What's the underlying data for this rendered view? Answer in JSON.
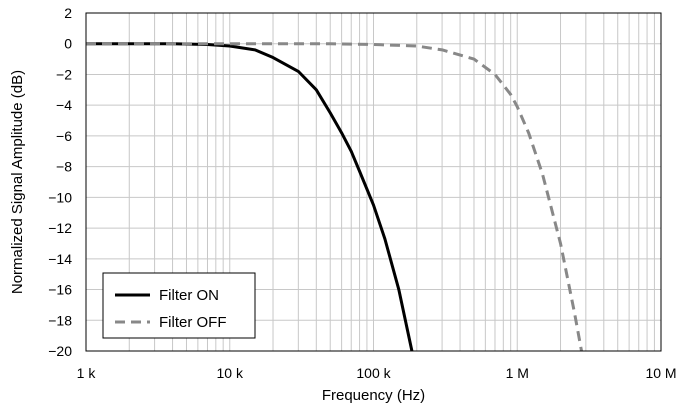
{
  "chart_data": {
    "type": "line",
    "xscale": "log",
    "xlabel": "Frequency (Hz)",
    "ylabel": "Normalized Signal Amplitude (dB)",
    "xlim": [
      1000,
      10000000
    ],
    "ylim": [
      -20,
      2
    ],
    "x_ticks": [
      1000,
      10000,
      100000,
      1000000,
      10000000
    ],
    "x_tick_labels": [
      "1 k",
      "10 k",
      "100 k",
      "1 M",
      "10 M"
    ],
    "y_ticks": [
      2,
      0,
      -2,
      -4,
      -6,
      -8,
      -10,
      -12,
      -14,
      -16,
      -18,
      -20
    ],
    "y_tick_labels": [
      "2",
      "0",
      "−2",
      "−4",
      "−6",
      "−8",
      "−10",
      "−12",
      "−14",
      "−16",
      "−18",
      "−20"
    ],
    "grid": true,
    "legend_position": "bottom-left",
    "series": [
      {
        "name": "Filter ON",
        "color": "#000000",
        "style": "solid",
        "points": [
          [
            1000,
            0.0
          ],
          [
            2000,
            0.0
          ],
          [
            4000,
            0.0
          ],
          [
            7000,
            -0.05
          ],
          [
            10000,
            -0.15
          ],
          [
            15000,
            -0.4
          ],
          [
            20000,
            -0.9
          ],
          [
            30000,
            -1.8
          ],
          [
            40000,
            -3.0
          ],
          [
            50000,
            -4.5
          ],
          [
            60000,
            -5.8
          ],
          [
            70000,
            -7.0
          ],
          [
            80000,
            -8.3
          ],
          [
            100000,
            -10.5
          ],
          [
            120000,
            -12.7
          ],
          [
            150000,
            -16.0
          ],
          [
            185000,
            -20.0
          ]
        ]
      },
      {
        "name": "Filter OFF",
        "color": "#888888",
        "style": "dashed",
        "points": [
          [
            1000,
            0.0
          ],
          [
            10000,
            0.0
          ],
          [
            50000,
            0.0
          ],
          [
            100000,
            -0.05
          ],
          [
            200000,
            -0.15
          ],
          [
            300000,
            -0.4
          ],
          [
            500000,
            -1.0
          ],
          [
            700000,
            -2.0
          ],
          [
            900000,
            -3.3
          ],
          [
            1000000,
            -4.1
          ],
          [
            1200000,
            -5.8
          ],
          [
            1500000,
            -8.5
          ],
          [
            2000000,
            -13.0
          ],
          [
            2500000,
            -17.5
          ],
          [
            2800000,
            -20.0
          ]
        ]
      }
    ]
  }
}
